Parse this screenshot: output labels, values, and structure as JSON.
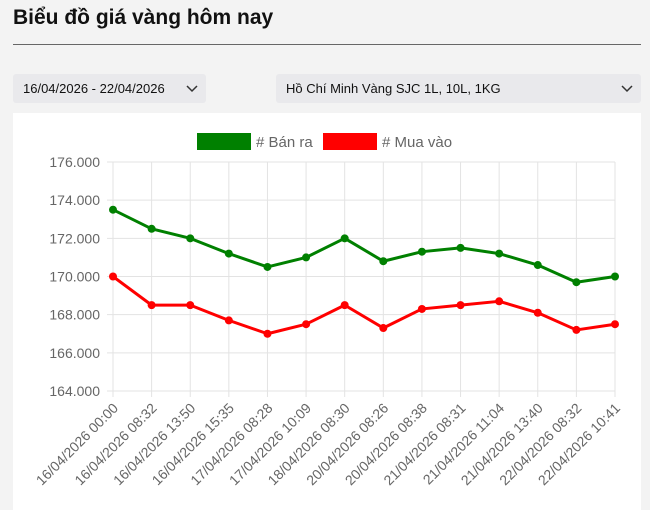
{
  "page": {
    "title": "Biểu đồ giá vàng hôm nay",
    "date_range": "16/04/2026 - 22/04/2026",
    "product": "Hồ Chí Minh Vàng SJC 1L, 10L, 1KG",
    "chevron_icon": "chevron-down-icon"
  },
  "chart_data": {
    "type": "line",
    "title": "",
    "xlabel": "",
    "ylabel": "",
    "ylim": [
      164000,
      176000
    ],
    "y_ticks": [
      164000,
      166000,
      168000,
      170000,
      172000,
      174000,
      176000
    ],
    "y_tick_labels": [
      "164.000",
      "166.000",
      "168.000",
      "170.000",
      "172.000",
      "174.000",
      "176.000"
    ],
    "grid": true,
    "legend_position": "top-center",
    "categories": [
      "16/04/2026 00:00",
      "16/04/2026 08:32",
      "16/04/2026 13:50",
      "16/04/2026 15:35",
      "17/04/2026 08:28",
      "17/04/2026 10:09",
      "18/04/2026 08:30",
      "20/04/2026 08:26",
      "20/04/2026 08:38",
      "21/04/2026 08:31",
      "21/04/2026 11:04",
      "21/04/2026 13:40",
      "22/04/2026 08:32",
      "22/04/2026 10:41"
    ],
    "series": [
      {
        "name": "# Bán ra",
        "color": "#008000",
        "values": [
          173500,
          172500,
          172000,
          171200,
          170500,
          171000,
          172000,
          170800,
          171300,
          171500,
          171200,
          170600,
          169700,
          170000
        ]
      },
      {
        "name": "# Mua vào",
        "color": "#ff0000",
        "values": [
          170000,
          168500,
          168500,
          167700,
          167000,
          167500,
          168500,
          167300,
          168300,
          168500,
          168700,
          168100,
          167200,
          167500
        ]
      }
    ]
  }
}
